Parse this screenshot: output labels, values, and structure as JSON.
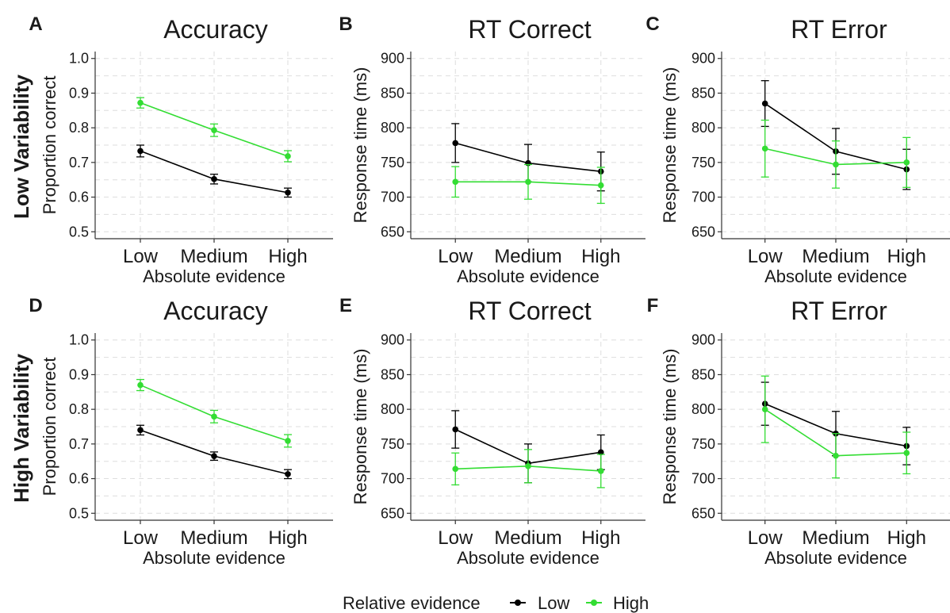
{
  "colors": {
    "low": "#000000",
    "high": "#33dd33",
    "grid": "#dedede",
    "axis": "#333333"
  },
  "row_labels": [
    "Low Variability",
    "High Variability"
  ],
  "legend": {
    "title": "Relative evidence",
    "items": [
      "Low",
      "High"
    ]
  },
  "chart_data": [
    {
      "panel": "A",
      "type": "line",
      "title": "Accuracy",
      "xlabel": "Absolute evidence",
      "ylabel": "Proportion correct",
      "categories": [
        "Low",
        "Medium",
        "High"
      ],
      "ylim": [
        0.48,
        1.02
      ],
      "yticks": [
        "0.5",
        "0.6",
        "0.7",
        "0.8",
        "0.9",
        "1.0"
      ],
      "series": [
        {
          "name": "Low",
          "values": [
            0.733,
            0.652,
            0.613
          ],
          "err": [
            0.017,
            0.014,
            0.013
          ]
        },
        {
          "name": "High",
          "values": [
            0.872,
            0.793,
            0.718
          ],
          "err": [
            0.015,
            0.018,
            0.016
          ]
        }
      ]
    },
    {
      "panel": "B",
      "type": "line",
      "title": "RT Correct",
      "xlabel": "Absolute evidence",
      "ylabel": "Response time (ms)",
      "categories": [
        "Low",
        "Medium",
        "High"
      ],
      "ylim": [
        640,
        910
      ],
      "yticks": [
        "650",
        "700",
        "750",
        "800",
        "850",
        "900"
      ],
      "series": [
        {
          "name": "Low",
          "values": [
            778,
            749,
            737
          ],
          "err": [
            28,
            27,
            28
          ]
        },
        {
          "name": "High",
          "values": [
            722,
            722,
            717
          ],
          "err": [
            22,
            25,
            26
          ]
        }
      ]
    },
    {
      "panel": "C",
      "type": "line",
      "title": "RT Error",
      "xlabel": "Absolute evidence",
      "ylabel": "Response time (ms)",
      "categories": [
        "Low",
        "Medium",
        "High"
      ],
      "ylim": [
        640,
        910
      ],
      "yticks": [
        "650",
        "700",
        "750",
        "800",
        "850",
        "900"
      ],
      "series": [
        {
          "name": "Low",
          "values": [
            835,
            766,
            740
          ],
          "err": [
            33,
            33,
            29
          ]
        },
        {
          "name": "High",
          "values": [
            770,
            747,
            750
          ],
          "err": [
            41,
            34,
            36
          ]
        }
      ]
    },
    {
      "panel": "D",
      "type": "line",
      "title": "Accuracy",
      "xlabel": "Absolute evidence",
      "ylabel": "Proportion correct",
      "categories": [
        "Low",
        "Medium",
        "High"
      ],
      "ylim": [
        0.48,
        1.02
      ],
      "yticks": [
        "0.5",
        "0.6",
        "0.7",
        "0.8",
        "0.9",
        "1.0"
      ],
      "series": [
        {
          "name": "Low",
          "values": [
            0.74,
            0.665,
            0.613
          ],
          "err": [
            0.014,
            0.012,
            0.013
          ]
        },
        {
          "name": "High",
          "values": [
            0.87,
            0.779,
            0.709
          ],
          "err": [
            0.016,
            0.018,
            0.018
          ]
        }
      ]
    },
    {
      "panel": "E",
      "type": "line",
      "title": "RT Correct",
      "xlabel": "Absolute evidence",
      "ylabel": "Response time (ms)",
      "categories": [
        "Low",
        "Medium",
        "High"
      ],
      "ylim": [
        640,
        910
      ],
      "yticks": [
        "650",
        "700",
        "750",
        "800",
        "850",
        "900"
      ],
      "series": [
        {
          "name": "Low",
          "values": [
            771,
            722,
            738
          ],
          "err": [
            27,
            28,
            25
          ]
        },
        {
          "name": "High",
          "values": [
            714,
            718,
            711
          ],
          "err": [
            23,
            24,
            24
          ]
        }
      ]
    },
    {
      "panel": "F",
      "type": "line",
      "title": "RT Error",
      "xlabel": "Absolute evidence",
      "ylabel": "Response time (ms)",
      "categories": [
        "Low",
        "Medium",
        "High"
      ],
      "ylim": [
        640,
        910
      ],
      "yticks": [
        "650",
        "700",
        "750",
        "800",
        "850",
        "900"
      ],
      "series": [
        {
          "name": "Low",
          "values": [
            808,
            765,
            747
          ],
          "err": [
            31,
            32,
            27
          ]
        },
        {
          "name": "High",
          "values": [
            800,
            733,
            737
          ],
          "err": [
            48,
            32,
            30
          ]
        }
      ]
    }
  ]
}
